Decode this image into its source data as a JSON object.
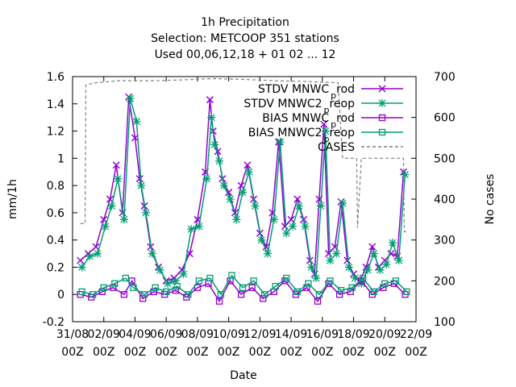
{
  "chart_data": {
    "type": "line",
    "title_lines": [
      "1h Precipitation",
      "Selection: METCOOP     351 stations",
      "Used  00,06,12,18 + 01 02 ... 12"
    ],
    "xlabel": "Date",
    "ylabel": "mm/1h",
    "y2label": "No cases",
    "xlim": [
      0,
      22
    ],
    "ylim": [
      -0.2,
      1.6
    ],
    "y2lim": [
      100,
      700
    ],
    "x_tick_values": [
      0,
      2,
      4,
      6,
      8,
      10,
      12,
      14,
      16,
      18,
      20,
      22
    ],
    "x_tick_labels": [
      [
        "31/08",
        "00Z"
      ],
      [
        "02/09",
        "00Z"
      ],
      [
        "04/09",
        "00Z"
      ],
      [
        "06/09",
        "00Z"
      ],
      [
        "08/09",
        "00Z"
      ],
      [
        "10/09",
        "00Z"
      ],
      [
        "12/09",
        "00Z"
      ],
      [
        "14/09",
        "00Z"
      ],
      [
        "16/09",
        "00Z"
      ],
      [
        "18/09",
        "00Z"
      ],
      [
        "20/09",
        "00Z"
      ],
      [
        "22/09",
        "00Z"
      ]
    ],
    "y_ticks": [
      -0.2,
      0,
      0.2,
      0.4,
      0.6,
      0.8,
      1,
      1.2,
      1.4,
      1.6
    ],
    "y_tick_labels": [
      "-0.2",
      "0",
      "0.2",
      "0.4",
      "0.6",
      "0.8",
      "1",
      "1.2",
      "1.4",
      "1.6"
    ],
    "y2_ticks": [
      100,
      200,
      300,
      400,
      500,
      600,
      700
    ],
    "y2_tick_labels": [
      "100",
      "200",
      "300",
      "400",
      "500",
      "600",
      "700"
    ],
    "legend_position": "top-right",
    "series": [
      {
        "name": "STDV MNWC_prod",
        "legend_main": "STDV MNWC",
        "legend_sub": "p",
        "legend_tail": "rod",
        "color": "#9400d3",
        "marker": "x",
        "axis": "y1",
        "x": [
          0.5,
          1.0,
          1.5,
          2.0,
          2.4,
          2.8,
          3.2,
          3.6,
          4.0,
          4.3,
          4.6,
          5.0,
          5.5,
          6.0,
          6.5,
          7.0,
          7.5,
          8.0,
          8.5,
          8.8,
          9.0,
          9.3,
          9.6,
          10.0,
          10.4,
          10.8,
          11.2,
          11.6,
          12.0,
          12.4,
          12.8,
          13.2,
          13.6,
          14.0,
          14.4,
          14.8,
          15.2,
          15.5,
          15.8,
          16.1,
          16.4,
          16.8,
          17.2,
          17.6,
          18.0,
          18.4,
          18.8,
          19.2,
          19.6,
          20.0,
          20.4,
          20.8,
          21.2
        ],
        "y": [
          0.25,
          0.3,
          0.35,
          0.55,
          0.7,
          0.95,
          0.6,
          1.45,
          1.15,
          0.85,
          0.65,
          0.35,
          0.2,
          0.1,
          0.12,
          0.18,
          0.3,
          0.55,
          0.9,
          1.43,
          1.2,
          1.05,
          0.85,
          0.75,
          0.6,
          0.8,
          0.95,
          0.7,
          0.45,
          0.35,
          0.6,
          1.12,
          0.5,
          0.55,
          0.7,
          0.55,
          0.25,
          0.15,
          0.7,
          1.25,
          0.3,
          0.35,
          0.68,
          0.25,
          0.15,
          0.1,
          0.2,
          0.35,
          0.2,
          0.25,
          0.3,
          0.28,
          0.9
        ]
      },
      {
        "name": "STDV MNWC2_preop",
        "legend_main": "STDV MNWC2",
        "legend_sub": "p",
        "legend_tail": "reop",
        "color": "#009e73",
        "marker": "*",
        "axis": "y1",
        "x": [
          0.6,
          1.1,
          1.6,
          2.1,
          2.5,
          2.9,
          3.3,
          3.7,
          4.1,
          4.4,
          4.7,
          5.1,
          5.6,
          6.1,
          6.6,
          7.1,
          7.6,
          8.1,
          8.6,
          8.9,
          9.1,
          9.4,
          9.7,
          10.1,
          10.5,
          10.9,
          11.3,
          11.7,
          12.1,
          12.5,
          12.9,
          13.3,
          13.7,
          14.1,
          14.5,
          14.9,
          15.3,
          15.6,
          15.9,
          16.2,
          16.5,
          16.9,
          17.3,
          17.7,
          18.1,
          18.5,
          18.9,
          19.3,
          19.7,
          20.1,
          20.5,
          20.9,
          21.3
        ],
        "y": [
          0.2,
          0.28,
          0.3,
          0.5,
          0.65,
          0.85,
          0.55,
          1.44,
          1.27,
          0.8,
          0.6,
          0.3,
          0.18,
          0.08,
          0.1,
          0.15,
          0.48,
          0.5,
          0.85,
          1.3,
          1.1,
          0.98,
          0.8,
          0.7,
          0.55,
          0.75,
          0.9,
          0.65,
          0.4,
          0.3,
          0.55,
          1.12,
          0.45,
          0.5,
          0.65,
          0.5,
          0.2,
          0.12,
          0.65,
          1.2,
          0.25,
          0.3,
          0.67,
          0.2,
          0.12,
          0.08,
          0.18,
          0.3,
          0.18,
          0.22,
          0.38,
          0.25,
          0.88
        ]
      },
      {
        "name": "BIAS MNWC_prod",
        "legend_main": "BIAS MNWC",
        "legend_sub": "p",
        "legend_tail": "rod",
        "color": "#9400d3",
        "marker": "square",
        "axis": "y1",
        "x": [
          0.5,
          1.2,
          1.9,
          2.6,
          3.3,
          3.8,
          4.5,
          5.2,
          5.9,
          6.6,
          7.3,
          8.0,
          8.7,
          9.4,
          10.1,
          10.8,
          11.5,
          12.2,
          12.9,
          13.6,
          14.3,
          15.0,
          15.7,
          16.4,
          17.1,
          17.8,
          18.5,
          19.2,
          19.9,
          20.6,
          21.3
        ],
        "y": [
          0.0,
          -0.02,
          0.02,
          0.05,
          0.0,
          0.1,
          -0.03,
          0.02,
          0.0,
          0.03,
          -0.02,
          0.05,
          0.08,
          -0.05,
          0.1,
          0.0,
          0.05,
          -0.03,
          0.02,
          0.1,
          0.0,
          0.05,
          -0.05,
          0.08,
          0.0,
          0.02,
          0.1,
          0.0,
          0.05,
          0.08,
          0.0
        ]
      },
      {
        "name": "BIAS MNWC2_preop",
        "legend_main": "BIAS MNWC2",
        "legend_sub": "p",
        "legend_tail": "reop",
        "color": "#009e73",
        "marker": "square",
        "axis": "y1",
        "x": [
          0.6,
          1.3,
          2.0,
          2.7,
          3.4,
          3.9,
          4.6,
          5.3,
          6.0,
          6.7,
          7.4,
          8.1,
          8.8,
          9.5,
          10.2,
          10.9,
          11.6,
          12.3,
          13.0,
          13.7,
          14.4,
          15.1,
          15.8,
          16.5,
          17.2,
          17.9,
          18.6,
          19.3,
          20.0,
          20.7,
          21.4
        ],
        "y": [
          0.02,
          0.0,
          0.05,
          0.08,
          0.12,
          0.05,
          0.0,
          0.05,
          0.02,
          0.06,
          0.0,
          0.1,
          0.12,
          0.0,
          0.14,
          0.05,
          0.1,
          0.0,
          0.06,
          0.12,
          0.02,
          0.08,
          0.0,
          0.1,
          0.03,
          0.05,
          0.12,
          0.02,
          0.08,
          0.1,
          0.02
        ]
      },
      {
        "name": "CASES",
        "legend_main": "CASES",
        "legend_sub": "",
        "legend_tail": "",
        "color": "#808080",
        "marker": "none",
        "dashed": true,
        "axis": "y2",
        "x": [
          0.5,
          0.8,
          0.85,
          1.5,
          3.0,
          5.0,
          7.0,
          9.0,
          11.0,
          13.0,
          15.0,
          17.0,
          17.3,
          17.35,
          18.2,
          18.25,
          18.5,
          21.0,
          21.2,
          21.25,
          21.4
        ],
        "y": [
          340,
          340,
          680,
          685,
          690,
          690,
          692,
          695,
          693,
          690,
          688,
          685,
          500,
          500,
          500,
          330,
          500,
          500,
          500,
          320,
          320
        ]
      }
    ]
  }
}
